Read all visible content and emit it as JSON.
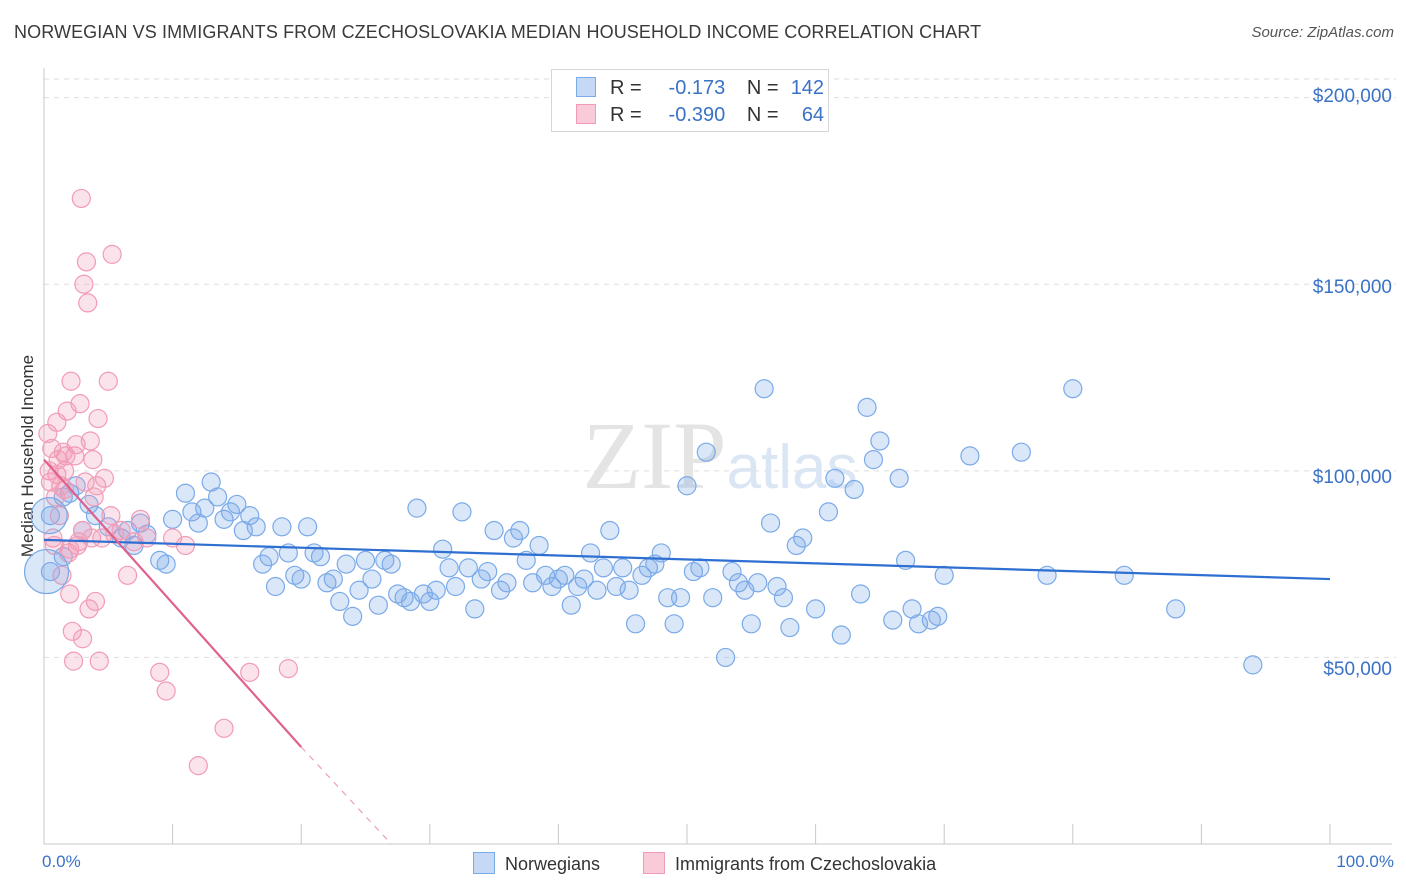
{
  "chart_data": {
    "type": "scatter",
    "title": "NORWEGIAN VS IMMIGRANTS FROM CZECHOSLOVAKIA MEDIAN HOUSEHOLD INCOME CORRELATION CHART",
    "source": "Source: ZipAtlas.com",
    "watermark": "ZIPatlas",
    "ylabel": "Median Household Income",
    "xlim": [
      0,
      100
    ],
    "ylim": [
      0,
      205000
    ],
    "x_tick_labels": [
      "0.0%",
      "100.0%"
    ],
    "y_ticks": [
      {
        "value": 200000,
        "label": "$200,000"
      },
      {
        "value": 150000,
        "label": "$150,000"
      },
      {
        "value": 100000,
        "label": "$100,000"
      },
      {
        "value": 50000,
        "label": "$50,000"
      }
    ],
    "legend_stats": [
      {
        "r_label": "R =",
        "r_value": "-0.173",
        "n_label": "N =",
        "n_value": "142"
      },
      {
        "r_label": "R =",
        "r_value": "-0.390",
        "n_label": "N =",
        "n_value": "64"
      }
    ],
    "series": [
      {
        "name": "Norwegians",
        "color": "#7aaae8",
        "line_color": "#2e6fd1",
        "trend": {
          "x0": 0,
          "y0": 81500,
          "x1": 100,
          "y1": 71000
        },
        "points": [
          [
            0.5,
            73000
          ],
          [
            0.5,
            88000
          ],
          [
            1.5,
            77000
          ],
          [
            1.5,
            93000
          ],
          [
            2,
            94000
          ],
          [
            2.5,
            96000
          ],
          [
            3,
            84000
          ],
          [
            3.5,
            91000
          ],
          [
            4,
            88000
          ],
          [
            5,
            85000
          ],
          [
            6,
            82000
          ],
          [
            6.5,
            84000
          ],
          [
            7,
            80000
          ],
          [
            7.5,
            86000
          ],
          [
            8,
            83000
          ],
          [
            9,
            76000
          ],
          [
            9.5,
            75000
          ],
          [
            10,
            87000
          ],
          [
            11,
            94000
          ],
          [
            11.5,
            89000
          ],
          [
            12,
            86000
          ],
          [
            12.5,
            90000
          ],
          [
            13,
            97000
          ],
          [
            13.5,
            93000
          ],
          [
            14,
            87000
          ],
          [
            14.5,
            89000
          ],
          [
            15,
            91000
          ],
          [
            15.5,
            84000
          ],
          [
            16,
            88000
          ],
          [
            16.5,
            85000
          ],
          [
            17,
            75000
          ],
          [
            17.5,
            77000
          ],
          [
            18,
            69000
          ],
          [
            18.5,
            85000
          ],
          [
            19,
            78000
          ],
          [
            19.5,
            72000
          ],
          [
            20,
            71000
          ],
          [
            20.5,
            85000
          ],
          [
            21,
            78000
          ],
          [
            21.5,
            77000
          ],
          [
            22,
            70000
          ],
          [
            22.5,
            71000
          ],
          [
            23,
            65000
          ],
          [
            23.5,
            75000
          ],
          [
            24,
            61000
          ],
          [
            24.5,
            68000
          ],
          [
            25,
            76000
          ],
          [
            25.5,
            71000
          ],
          [
            26,
            64000
          ],
          [
            26.5,
            76000
          ],
          [
            27,
            75000
          ],
          [
            27.5,
            67000
          ],
          [
            28,
            66000
          ],
          [
            28.5,
            65000
          ],
          [
            29,
            90000
          ],
          [
            29.5,
            67000
          ],
          [
            30,
            65000
          ],
          [
            30.5,
            68000
          ],
          [
            31,
            79000
          ],
          [
            31.5,
            74000
          ],
          [
            32,
            69000
          ],
          [
            32.5,
            89000
          ],
          [
            33,
            74000
          ],
          [
            33.5,
            63000
          ],
          [
            34,
            71000
          ],
          [
            34.5,
            73000
          ],
          [
            35,
            84000
          ],
          [
            35.5,
            68000
          ],
          [
            36,
            70000
          ],
          [
            36.5,
            82000
          ],
          [
            37,
            84000
          ],
          [
            37.5,
            76000
          ],
          [
            38,
            70000
          ],
          [
            38.5,
            80000
          ],
          [
            39,
            72000
          ],
          [
            39.5,
            69000
          ],
          [
            40,
            71000
          ],
          [
            40.5,
            72000
          ],
          [
            41,
            64000
          ],
          [
            41.5,
            69000
          ],
          [
            42,
            71000
          ],
          [
            42.5,
            78000
          ],
          [
            43,
            68000
          ],
          [
            43.5,
            74000
          ],
          [
            44,
            84000
          ],
          [
            44.5,
            69000
          ],
          [
            45,
            74000
          ],
          [
            45.5,
            68000
          ],
          [
            46,
            59000
          ],
          [
            46.5,
            72000
          ],
          [
            47,
            74000
          ],
          [
            47.5,
            75000
          ],
          [
            48,
            78000
          ],
          [
            48.5,
            66000
          ],
          [
            49,
            59000
          ],
          [
            49.5,
            66000
          ],
          [
            50,
            96000
          ],
          [
            50.5,
            73000
          ],
          [
            51,
            74000
          ],
          [
            51.5,
            105000
          ],
          [
            52,
            66000
          ],
          [
            53,
            50000
          ],
          [
            53.5,
            73000
          ],
          [
            54,
            70000
          ],
          [
            54.5,
            68000
          ],
          [
            55,
            59000
          ],
          [
            55.5,
            70000
          ],
          [
            56,
            122000
          ],
          [
            56.5,
            86000
          ],
          [
            57,
            69000
          ],
          [
            57.5,
            66000
          ],
          [
            58,
            58000
          ],
          [
            58.5,
            80000
          ],
          [
            59,
            82000
          ],
          [
            60,
            63000
          ],
          [
            61,
            89000
          ],
          [
            61.5,
            98000
          ],
          [
            62,
            56000
          ],
          [
            63,
            95000
          ],
          [
            63.5,
            67000
          ],
          [
            64,
            117000
          ],
          [
            64.5,
            103000
          ],
          [
            65,
            108000
          ],
          [
            66,
            60000
          ],
          [
            66.5,
            98000
          ],
          [
            67,
            76000
          ],
          [
            67.5,
            63000
          ],
          [
            68,
            59000
          ],
          [
            69,
            60000
          ],
          [
            69.5,
            61000
          ],
          [
            70,
            72000
          ],
          [
            72,
            104000
          ],
          [
            76,
            105000
          ],
          [
            78,
            72000
          ],
          [
            80,
            122000
          ],
          [
            84,
            72000
          ],
          [
            88,
            63000
          ],
          [
            94,
            48000
          ]
        ]
      },
      {
        "name": "Immigrants from Czechoslovakia",
        "color": "#f29bb6",
        "line_color": "#e0608e",
        "trend": {
          "x0": 0,
          "y0": 103000,
          "x1": 20,
          "y1": 26000
        },
        "trend_dashed": {
          "x0": 20,
          "y0": 26000,
          "x1": 27,
          "y1": 0
        },
        "points": [
          [
            0.3,
            110000
          ],
          [
            0.4,
            100000
          ],
          [
            0.5,
            97000
          ],
          [
            0.6,
            106000
          ],
          [
            0.7,
            82000
          ],
          [
            0.8,
            80000
          ],
          [
            0.9,
            93000
          ],
          [
            1,
            99000
          ],
          [
            1,
            113000
          ],
          [
            1.1,
            103000
          ],
          [
            1.2,
            88000
          ],
          [
            1.3,
            96000
          ],
          [
            1.4,
            72000
          ],
          [
            1.5,
            105000
          ],
          [
            1.6,
            100000
          ],
          [
            1.7,
            104000
          ],
          [
            1.8,
            116000
          ],
          [
            1.9,
            78000
          ],
          [
            2,
            67000
          ],
          [
            2,
            79000
          ],
          [
            2.1,
            124000
          ],
          [
            2.2,
            57000
          ],
          [
            2.3,
            49000
          ],
          [
            2.4,
            104000
          ],
          [
            2.5,
            107000
          ],
          [
            2.6,
            80000
          ],
          [
            2.7,
            81000
          ],
          [
            2.8,
            118000
          ],
          [
            2.9,
            173000
          ],
          [
            3,
            84000
          ],
          [
            3,
            55000
          ],
          [
            3.1,
            150000
          ],
          [
            3.2,
            97000
          ],
          [
            3.3,
            156000
          ],
          [
            3.4,
            145000
          ],
          [
            3.5,
            63000
          ],
          [
            3.6,
            108000
          ],
          [
            3.7,
            82000
          ],
          [
            3.8,
            103000
          ],
          [
            3.9,
            93000
          ],
          [
            4,
            65000
          ],
          [
            4.1,
            96000
          ],
          [
            4.2,
            114000
          ],
          [
            4.3,
            49000
          ],
          [
            4.5,
            82000
          ],
          [
            4.7,
            98000
          ],
          [
            5,
            124000
          ],
          [
            5.2,
            88000
          ],
          [
            5.5,
            83000
          ],
          [
            6,
            84000
          ],
          [
            6.5,
            72000
          ],
          [
            7,
            81000
          ],
          [
            7.5,
            87000
          ],
          [
            8,
            82000
          ],
          [
            9,
            46000
          ],
          [
            9.5,
            41000
          ],
          [
            10,
            82000
          ],
          [
            11,
            80000
          ],
          [
            12,
            21000
          ],
          [
            14,
            31000
          ],
          [
            16,
            46000
          ],
          [
            19,
            47000
          ],
          [
            5.3,
            158000
          ],
          [
            1.6,
            95000
          ]
        ]
      }
    ]
  }
}
